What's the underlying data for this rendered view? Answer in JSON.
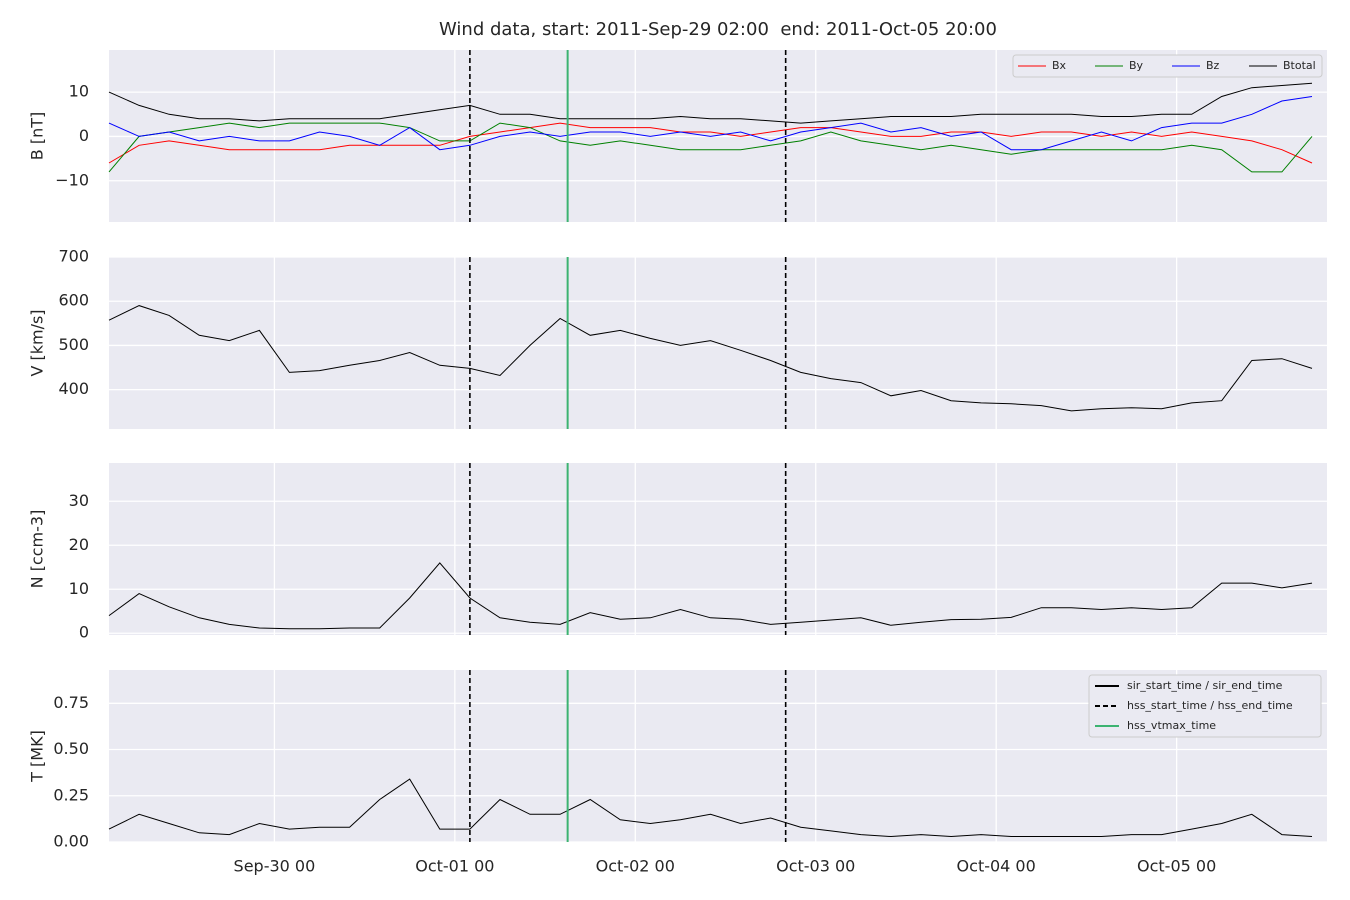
{
  "title": "Wind data, start: 2011-Sep-29 02:00  end: 2011-Oct-05 20:00",
  "x": [
    "Sep-29 02",
    "Sep-29 06",
    "Sep-29 10",
    "Sep-29 14",
    "Sep-29 18",
    "Sep-29 22",
    "Sep-30 02",
    "Sep-30 06",
    "Sep-30 10",
    "Sep-30 14",
    "Sep-30 18",
    "Sep-30 22",
    "Oct-01 02",
    "Oct-01 06",
    "Oct-01 10",
    "Oct-01 14",
    "Oct-01 18",
    "Oct-01 22",
    "Oct-02 02",
    "Oct-02 06",
    "Oct-02 10",
    "Oct-02 14",
    "Oct-02 18",
    "Oct-02 22",
    "Oct-03 02",
    "Oct-03 06",
    "Oct-03 10",
    "Oct-03 14",
    "Oct-03 18",
    "Oct-03 22",
    "Oct-04 02",
    "Oct-04 06",
    "Oct-04 10",
    "Oct-04 14",
    "Oct-04 18",
    "Oct-04 22",
    "Oct-05 02",
    "Oct-05 06",
    "Oct-05 10",
    "Oct-05 14",
    "Oct-05 18"
  ],
  "xlim": [
    "Sep-29 02",
    "Oct-05 20"
  ],
  "xticks": [
    "Sep-30 00",
    "Oct-01 00",
    "Oct-02 00",
    "Oct-03 00",
    "Oct-04 00",
    "Oct-05 00"
  ],
  "events": [
    {
      "name": "sir_start_time / sir_end_time",
      "color": "#000000",
      "style": "solid",
      "times": []
    },
    {
      "name": "hss_start_time / hss_end_time",
      "color": "#000000",
      "style": "dashed",
      "times": [
        "Oct-01 02",
        "Oct-02 20"
      ]
    },
    {
      "name": "hss_vtmax_time",
      "color": "#3cb371",
      "style": "solid",
      "times": [
        "Oct-01 15"
      ]
    }
  ],
  "chart_data": [
    {
      "type": "line",
      "ylabel": "B [nT]",
      "ylim": [
        -19.3,
        19.5
      ],
      "yticks": [
        {
          "value": -10,
          "label": "−10"
        },
        0,
        10
      ],
      "grid": true,
      "legend": "upper right",
      "series": [
        {
          "name": "Bx",
          "color": "#ff0000",
          "values": [
            -6,
            -2,
            -1,
            -2,
            -3,
            -3,
            -3,
            -3,
            -2,
            -2,
            -2,
            -2,
            0,
            1,
            2,
            3,
            2,
            2,
            2,
            1,
            1,
            0,
            1,
            2,
            2,
            1,
            0,
            0,
            1,
            1,
            0,
            1,
            1,
            0,
            1,
            0,
            1,
            0,
            -1,
            -3,
            -6
          ]
        },
        {
          "name": "By",
          "color": "#008000",
          "values": [
            -8,
            0,
            1,
            2,
            3,
            2,
            3,
            3,
            3,
            3,
            2,
            -1,
            -1,
            3,
            2,
            -1,
            -2,
            -1,
            -2,
            -3,
            -3,
            -3,
            -2,
            -1,
            1,
            -1,
            -2,
            -3,
            -2,
            -3,
            -4,
            -3,
            -3,
            -3,
            -3,
            -3,
            -2,
            -3,
            -8,
            -8,
            0
          ]
        },
        {
          "name": "Bz",
          "color": "#0000ff",
          "values": [
            3,
            0,
            1,
            -1,
            0,
            -1,
            -1,
            1,
            0,
            -2,
            2,
            -3,
            -2,
            0,
            1,
            0,
            1,
            1,
            0,
            1,
            0,
            1,
            -1,
            1,
            2,
            3,
            1,
            2,
            0,
            1,
            -3,
            -3,
            -1,
            1,
            -1,
            2,
            3,
            3,
            5,
            8,
            9
          ]
        },
        {
          "name": "Btotal",
          "color": "#000000",
          "values": [
            10,
            7,
            5,
            4,
            4,
            3.5,
            4,
            4,
            4,
            4,
            5,
            6,
            7,
            5,
            5,
            4,
            4,
            4,
            4,
            4.5,
            4,
            4,
            3.5,
            3,
            3.5,
            4,
            4.5,
            4.5,
            4.5,
            5,
            5,
            5,
            5,
            4.5,
            4.5,
            5,
            5,
            9,
            11,
            11.5,
            12
          ]
        }
      ]
    },
    {
      "type": "line",
      "ylabel": "V [km/s]",
      "ylim": [
        311,
        700
      ],
      "yticks": [
        400,
        500,
        600,
        700
      ],
      "grid": true,
      "series": [
        {
          "color": "#000000",
          "values": [
            557,
            590,
            568,
            523,
            511,
            534,
            439,
            443,
            455,
            466,
            484,
            455,
            448,
            432,
            500,
            561,
            523,
            534,
            516,
            500,
            511,
            489,
            466,
            439,
            425,
            416,
            386,
            398,
            375,
            370,
            368,
            364,
            352,
            357,
            359,
            357,
            370,
            375,
            466,
            470,
            448
          ]
        }
      ]
    },
    {
      "type": "line",
      "ylabel": "N [ccm-3]",
      "ylim": [
        -0.4,
        38.7
      ],
      "yticks": [
        0,
        10,
        20,
        30
      ],
      "grid": true,
      "series": [
        {
          "color": "#000000",
          "values": [
            4,
            9,
            6,
            3.5,
            2,
            1.2,
            1,
            1,
            1.2,
            1.2,
            8,
            16,
            8,
            3.5,
            2.5,
            2,
            4.7,
            3.2,
            3.5,
            5.4,
            3.5,
            3.2,
            2,
            2.5,
            3,
            3.5,
            1.8,
            2.5,
            3.1,
            3.2,
            3.6,
            5.8,
            5.8,
            5.4,
            5.8,
            5.4,
            5.8,
            11.4,
            11.4,
            10.3,
            11.4
          ]
        }
      ]
    },
    {
      "type": "line",
      "ylabel": "T [MK]",
      "ylim": [
        0,
        0.93
      ],
      "yticks": [
        {
          "value": 0,
          "label": "0.00"
        },
        {
          "value": 0.25,
          "label": "0.25"
        },
        {
          "value": 0.5,
          "label": "0.50"
        },
        {
          "value": 0.75,
          "label": "0.75"
        }
      ],
      "grid": true,
      "events_legend": "upper right",
      "series": [
        {
          "color": "#000000",
          "values": [
            0.07,
            0.15,
            0.1,
            0.05,
            0.04,
            0.1,
            0.07,
            0.08,
            0.08,
            0.23,
            0.34,
            0.07,
            0.07,
            0.23,
            0.15,
            0.15,
            0.23,
            0.12,
            0.1,
            0.12,
            0.15,
            0.1,
            0.13,
            0.08,
            0.06,
            0.04,
            0.03,
            0.04,
            0.03,
            0.04,
            0.03,
            0.03,
            0.03,
            0.03,
            0.04,
            0.04,
            0.07,
            0.1,
            0.15,
            0.04,
            0.03
          ]
        }
      ]
    }
  ]
}
